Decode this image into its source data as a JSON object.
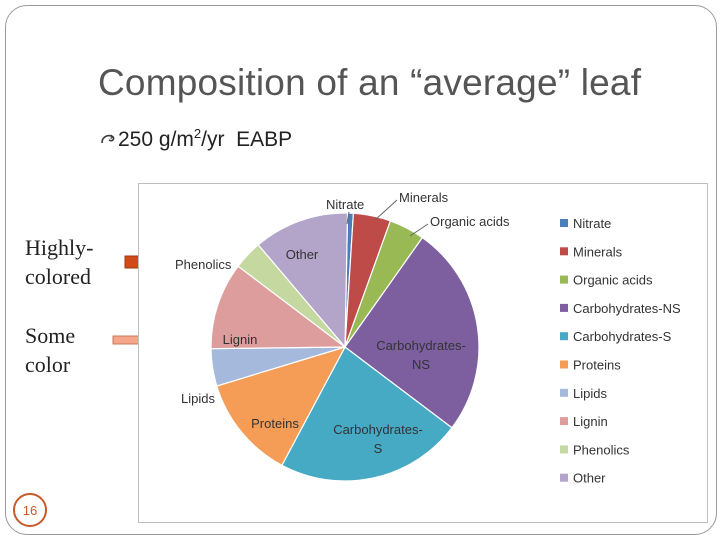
{
  "slide": {
    "title": "Composition of an “average” leaf",
    "bullet": {
      "icon": "curl-bullet-icon",
      "value": "250",
      "unit_prefix": "g/m",
      "unit_sup": "2",
      "unit_suffix": "/yr",
      "label": "EABP"
    },
    "side_labels": [
      {
        "line1": "Highly-",
        "line2": "colored",
        "arrow_color": "#d24a1a"
      },
      {
        "line1": "Some",
        "line2": "color",
        "arrow_color": "#f4a58a"
      }
    ],
    "slide_number": "16"
  },
  "chart_data": {
    "type": "pie",
    "title": "",
    "legend_position": "right",
    "slices": [
      {
        "label": "Nitrate",
        "pie_label": [
          "Nitrate"
        ],
        "value": 0.7,
        "color": "#4a7ebb"
      },
      {
        "label": "Minerals",
        "pie_label": [
          "Minerals"
        ],
        "value": 4.5,
        "color": "#be4b48"
      },
      {
        "label": "Organic acids",
        "pie_label": [
          "Organic acids"
        ],
        "value": 4.3,
        "color": "#98b954"
      },
      {
        "label": "Carbohydrates-NS",
        "pie_label": [
          "Carbohydrates-",
          "NS"
        ],
        "value": 25.5,
        "color": "#7d5fa0"
      },
      {
        "label": "Carbohydrates-S",
        "pie_label": [
          "Carbohydrates-",
          "S"
        ],
        "value": 22.5,
        "color": "#46aac5"
      },
      {
        "label": "Proteins",
        "pie_label": [
          "Proteins"
        ],
        "value": 12.5,
        "color": "#f59d56"
      },
      {
        "label": "Lipids",
        "pie_label": [
          "Lipids"
        ],
        "value": 4.5,
        "color": "#a5b9dd"
      },
      {
        "label": "Lignin",
        "pie_label": [
          "Lignin"
        ],
        "value": 10.5,
        "color": "#dd9d9c"
      },
      {
        "label": "Phenolics",
        "pie_label": [
          "Phenolics"
        ],
        "value": 3.5,
        "color": "#c4d8a0"
      },
      {
        "label": "Other",
        "pie_label": [
          "Other"
        ],
        "value": 11.5,
        "color": "#b3a4c9"
      }
    ]
  }
}
